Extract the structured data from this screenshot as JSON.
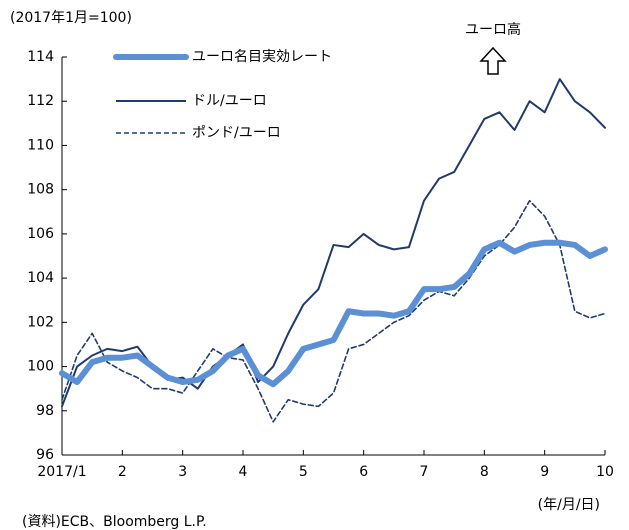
{
  "chart_data": {
    "type": "line",
    "unit_label": "(2017年1月=100)",
    "annotation": "ユーロ高",
    "x_label": "(年/月/日)",
    "source": "(資料)ECB、Bloomberg L.P.",
    "x": [
      1,
      1.25,
      1.5,
      1.75,
      2,
      2.25,
      2.5,
      2.75,
      3,
      3.25,
      3.5,
      3.75,
      4,
      4.25,
      4.5,
      4.75,
      5,
      5.25,
      5.5,
      5.75,
      6,
      6.25,
      6.5,
      6.75,
      7,
      7.25,
      7.5,
      7.75,
      8,
      8.25,
      8.5,
      8.75,
      9,
      9.25,
      9.5,
      9.75,
      10
    ],
    "xlim": [
      1,
      10
    ],
    "xticks": [
      {
        "value": 1,
        "label": "2017/1"
      },
      2,
      3,
      4,
      5,
      6,
      7,
      8,
      9,
      10
    ],
    "ylim": [
      96,
      114
    ],
    "yticks": [
      96,
      98,
      100,
      102,
      104,
      106,
      108,
      110,
      112,
      114
    ],
    "series": [
      {
        "name": "ユーロ名目実効レート",
        "color": "#5b8fd6",
        "linestyle": "solid",
        "values": [
          99.7,
          99.3,
          100.2,
          100.4,
          100.4,
          100.5,
          100.0,
          99.5,
          99.3,
          99.4,
          99.8,
          100.5,
          100.8,
          99.6,
          99.2,
          99.8,
          100.8,
          101.0,
          101.2,
          102.5,
          102.4,
          102.4,
          102.3,
          102.5,
          103.5,
          103.5,
          103.6,
          104.2,
          105.3,
          105.6,
          105.2,
          105.5,
          105.6,
          105.6,
          105.5,
          105.0,
          105.3
        ]
      },
      {
        "name": "ドル/ユーロ",
        "color": "#1f3b6e",
        "linestyle": "solid",
        "values": [
          98.2,
          100.0,
          100.5,
          100.8,
          100.7,
          100.9,
          100.0,
          99.4,
          99.5,
          99.0,
          100.0,
          100.5,
          101.0,
          99.3,
          100.0,
          101.5,
          102.8,
          103.5,
          105.5,
          105.4,
          106.0,
          105.5,
          105.3,
          105.4,
          107.5,
          108.5,
          108.8,
          110.0,
          111.2,
          111.5,
          110.7,
          112.0,
          111.5,
          113.0,
          112.0,
          111.5,
          110.8
        ]
      },
      {
        "name": "ポンド/ユーロ",
        "color": "#1f3b6e",
        "linestyle": "dashed",
        "values": [
          98.5,
          100.5,
          101.5,
          100.2,
          99.8,
          99.5,
          99.0,
          99.0,
          98.8,
          99.8,
          100.8,
          100.4,
          100.3,
          99.0,
          97.5,
          98.5,
          98.3,
          98.2,
          98.8,
          100.8,
          101.0,
          101.5,
          102.0,
          102.3,
          103.0,
          103.4,
          103.2,
          104.0,
          105.0,
          105.5,
          106.3,
          107.5,
          106.8,
          105.5,
          102.5,
          102.2,
          102.4
        ]
      }
    ]
  }
}
